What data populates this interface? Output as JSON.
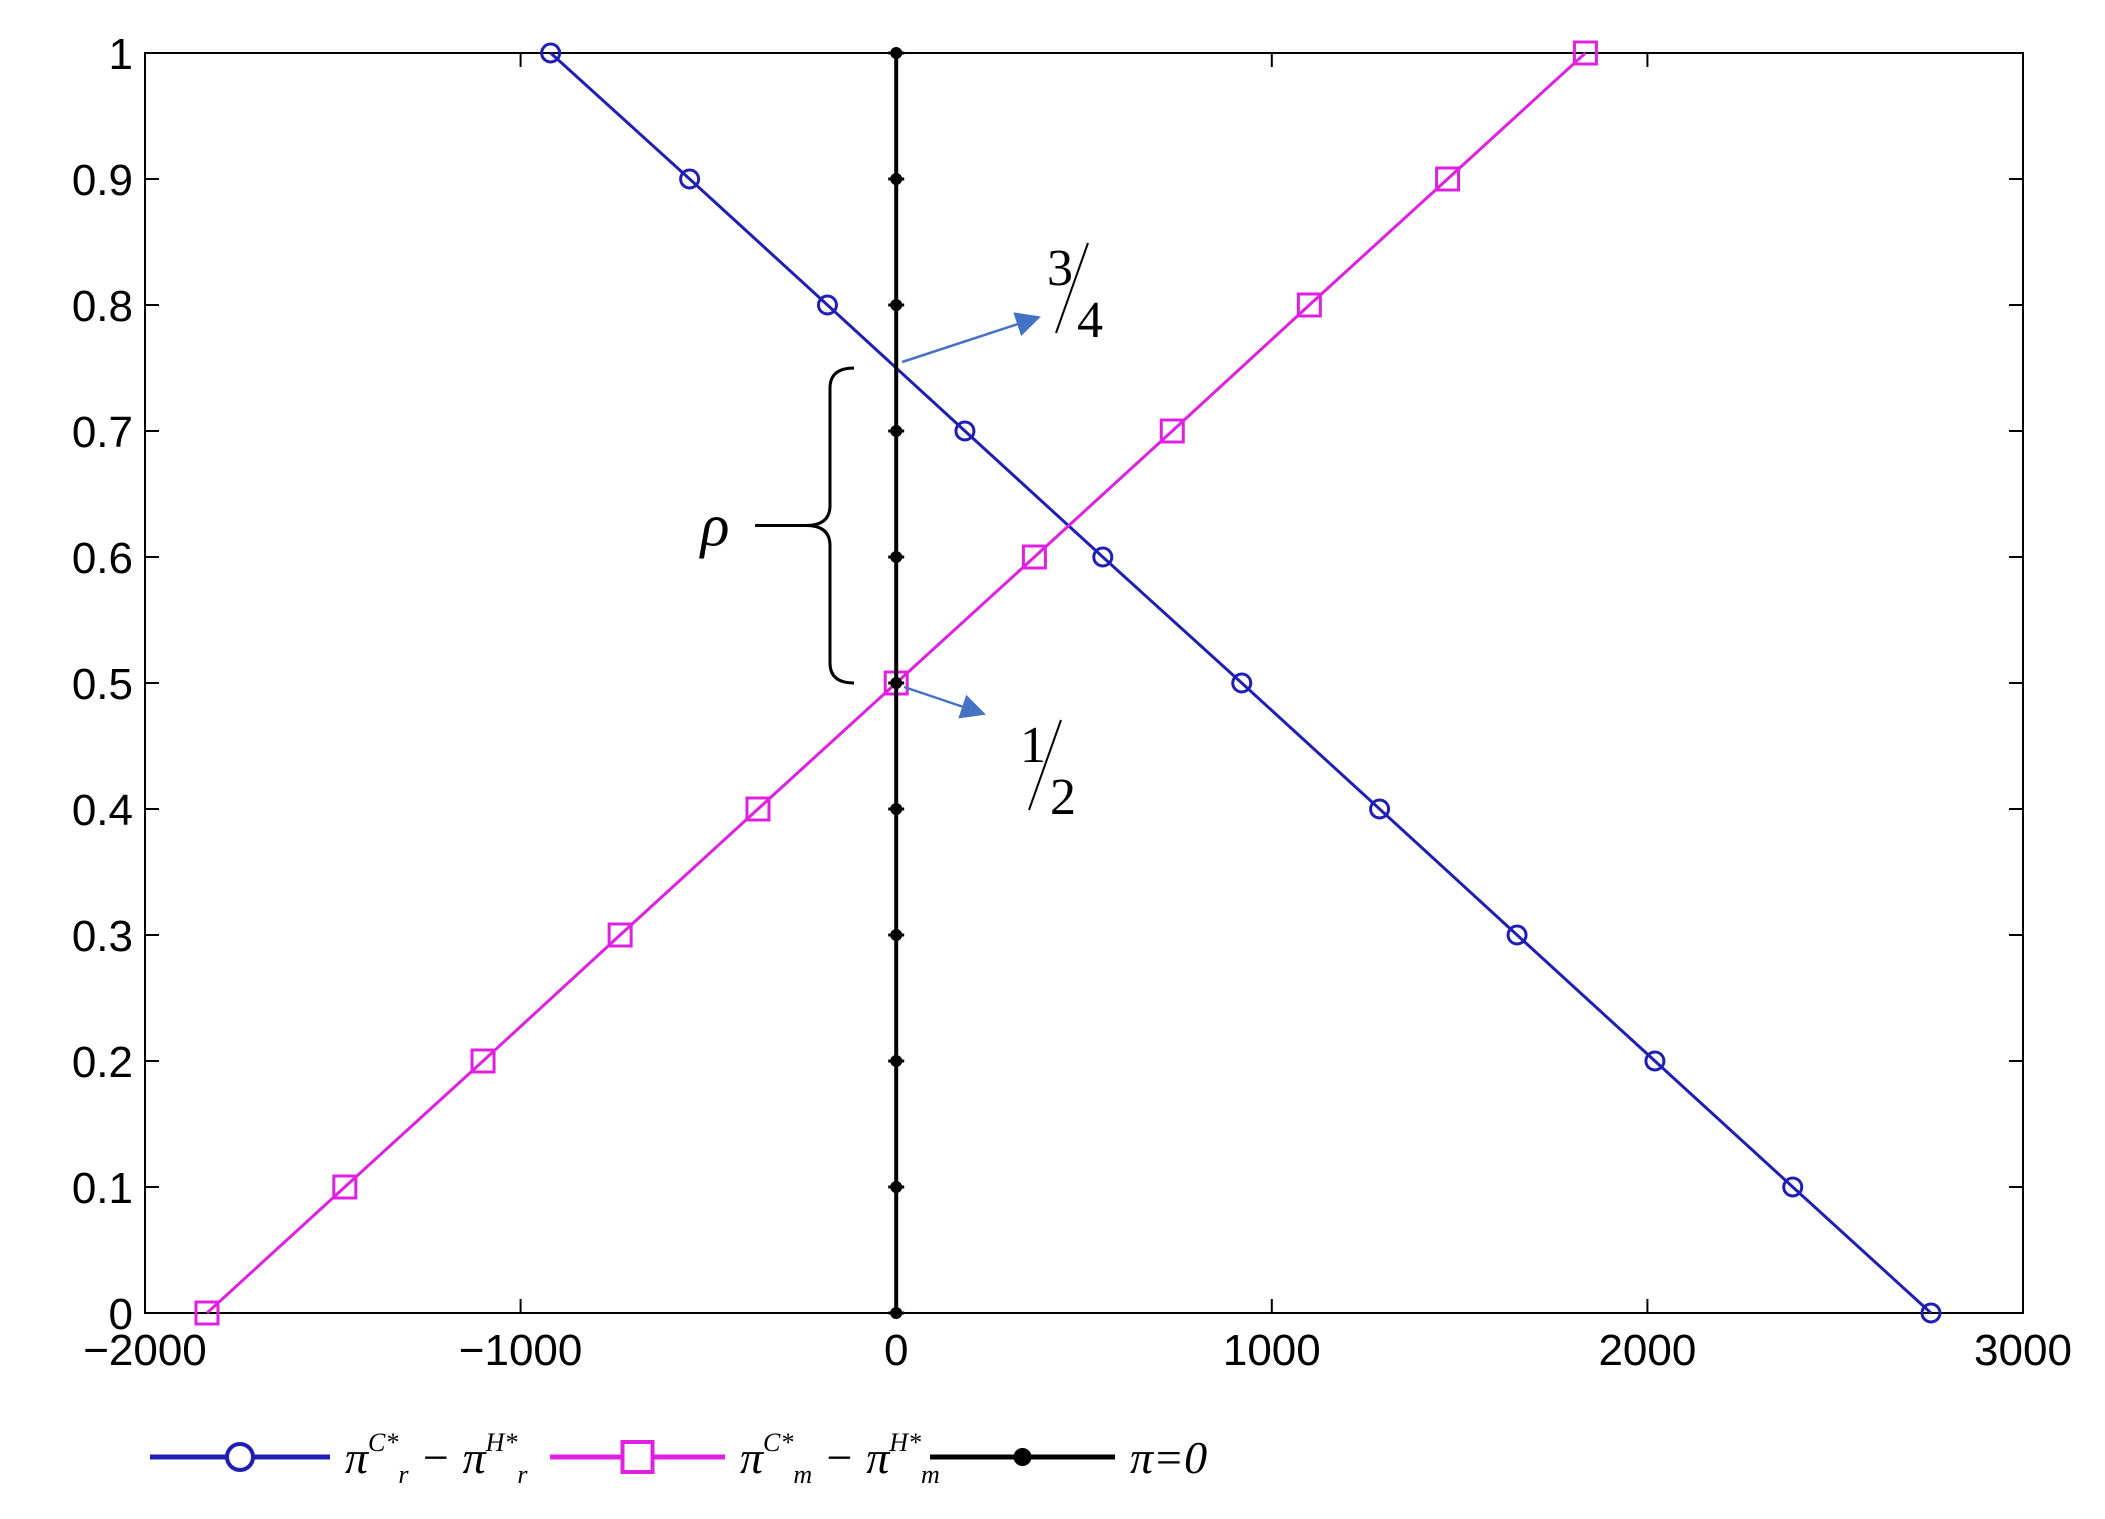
{
  "chart_data": {
    "type": "line",
    "title": "",
    "xlabel": "",
    "ylabel": "",
    "xlim": [
      -2000,
      3000
    ],
    "ylim": [
      0,
      1
    ],
    "x_ticks": [
      -2000,
      -1000,
      0,
      1000,
      2000,
      3000
    ],
    "x_tick_labels": [
      "−2000",
      "−1000",
      "0",
      "1000",
      "2000",
      "3000"
    ],
    "y_ticks": [
      0,
      0.1,
      0.2,
      0.3,
      0.4,
      0.5,
      0.6,
      0.7,
      0.8,
      0.9,
      1
    ],
    "y_tick_labels": [
      "0",
      "0.1",
      "0.2",
      "0.3",
      "0.4",
      "0.5",
      "0.6",
      "0.7",
      "0.8",
      "0.9",
      "1"
    ],
    "grid": false,
    "legend_position": "bottom",
    "series": [
      {
        "name": "πr C* − πr H*",
        "label_parts": {
          "a": "π",
          "a_sub": "r",
          "a_sup": "C*",
          "op": "−",
          "b": "π",
          "b_sub": "r",
          "b_sup": "H*"
        },
        "color": "#1f1fb4",
        "marker": "circle",
        "x": [
          -920,
          -550,
          -183,
          183,
          550,
          920,
          1287,
          1653,
          2020,
          2387,
          2755
        ],
        "y": [
          1.0,
          0.9,
          0.8,
          0.7,
          0.6,
          0.5,
          0.4,
          0.3,
          0.2,
          0.1,
          0.0
        ]
      },
      {
        "name": "πm C* − πm H*",
        "label_parts": {
          "a": "π",
          "a_sub": "m",
          "a_sup": "C*",
          "op": "−",
          "b": "π",
          "b_sub": "m",
          "b_sup": "H*"
        },
        "color": "#e020e0",
        "marker": "square",
        "x": [
          -1835,
          -1468,
          -1100,
          -735,
          -368,
          0,
          368,
          735,
          1100,
          1468,
          1835
        ],
        "y": [
          0.0,
          0.1,
          0.2,
          0.3,
          0.4,
          0.5,
          0.6,
          0.7,
          0.8,
          0.9,
          1.0
        ]
      },
      {
        "name": "π=0",
        "label_parts": {
          "a": "π",
          "rest": "=0"
        },
        "color": "#000000",
        "marker": "dot",
        "x": [
          0,
          0,
          0,
          0,
          0,
          0,
          0,
          0,
          0,
          0,
          0
        ],
        "y": [
          0.0,
          0.1,
          0.2,
          0.3,
          0.4,
          0.5,
          0.6,
          0.7,
          0.8,
          0.9,
          1.0
        ]
      }
    ],
    "annotations": [
      {
        "numerator": "3",
        "denominator": "4",
        "point": [
          0,
          0.75
        ],
        "color": "#4472c4"
      },
      {
        "numerator": "1",
        "denominator": "2",
        "point": [
          0,
          0.5
        ],
        "color": "#4472c4"
      },
      {
        "text": "ρ",
        "brace_range": [
          0.5,
          0.75
        ]
      }
    ]
  }
}
